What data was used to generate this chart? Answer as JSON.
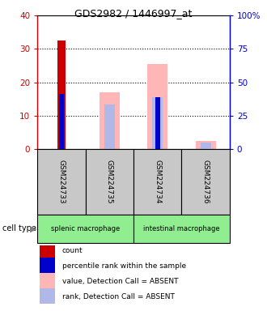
{
  "title": "GDS2982 / 1446997_at",
  "samples": [
    "GSM224733",
    "GSM224735",
    "GSM224734",
    "GSM224736"
  ],
  "cell_types": [
    {
      "label": "splenic macrophage",
      "span": [
        0,
        1
      ],
      "color": "#90EE90"
    },
    {
      "label": "intestinal macrophage",
      "span": [
        2,
        3
      ],
      "color": "#90EE90"
    }
  ],
  "count_values": [
    32.5,
    0,
    0,
    0
  ],
  "count_color": "#CC0000",
  "percentile_rank_values": [
    16.5,
    0,
    15.5,
    0
  ],
  "percentile_rank_color": "#0000CC",
  "absent_value_values": [
    0,
    17,
    25.5,
    2.5
  ],
  "absent_value_color": "#FFB6B6",
  "absent_rank_values": [
    0,
    13.5,
    15.5,
    2.0
  ],
  "absent_rank_color": "#B0B8E8",
  "ylim_left": [
    0,
    40
  ],
  "ylim_right": [
    0,
    100
  ],
  "yticks_left": [
    0,
    10,
    20,
    30,
    40
  ],
  "yticks_right": [
    0,
    25,
    50,
    75,
    100
  ],
  "ytick_labels_right": [
    "0",
    "25",
    "50",
    "75",
    "100%"
  ],
  "left_axis_color": "#CC0000",
  "right_axis_color": "#0000CC",
  "legend_items": [
    {
      "label": "count",
      "color": "#CC0000"
    },
    {
      "label": "percentile rank within the sample",
      "color": "#0000CC"
    },
    {
      "label": "value, Detection Call = ABSENT",
      "color": "#FFB6B6"
    },
    {
      "label": "rank, Detection Call = ABSENT",
      "color": "#B0B8E8"
    }
  ]
}
